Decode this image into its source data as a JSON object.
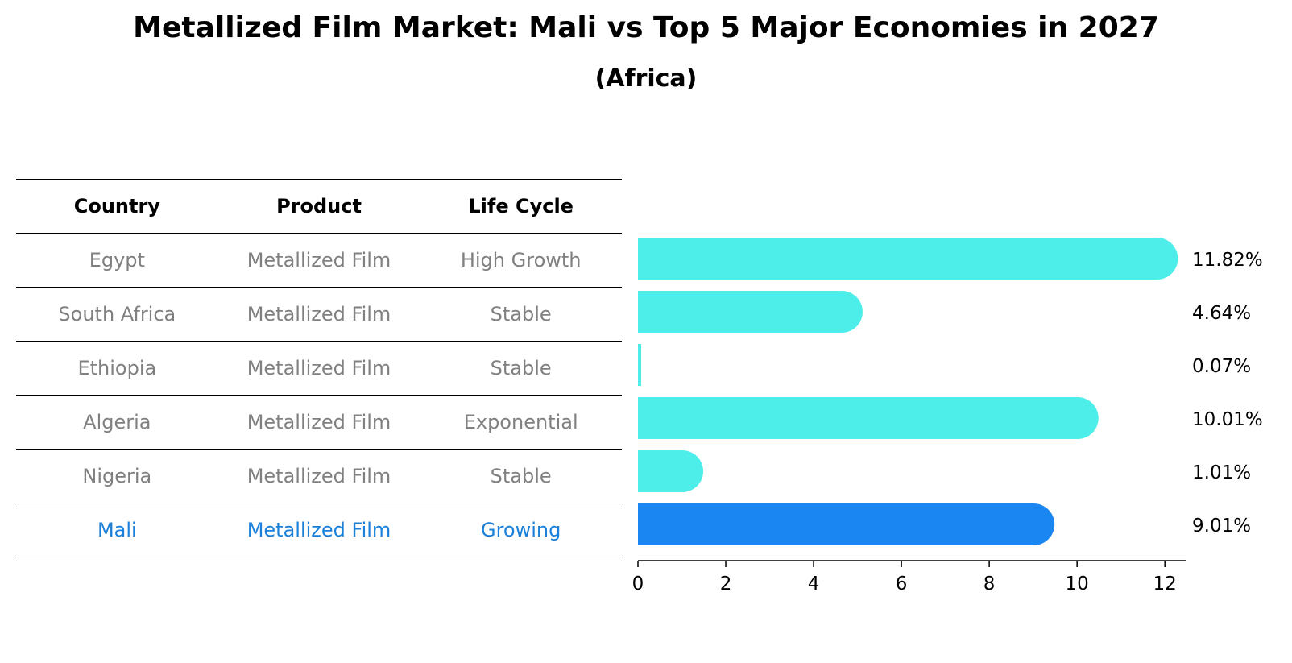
{
  "title": "Metallized Film Market: Mali vs Top 5 Major Economies in 2027",
  "subtitle": "(Africa)",
  "table": {
    "headers": [
      "Country",
      "Product",
      "Life Cycle"
    ],
    "rows": [
      {
        "country": "Egypt",
        "product": "Metallized Film",
        "life_cycle": "High Growth"
      },
      {
        "country": "South Africa",
        "product": "Metallized Film",
        "life_cycle": "Stable"
      },
      {
        "country": "Ethiopia",
        "product": "Metallized Film",
        "life_cycle": "Stable"
      },
      {
        "country": "Algeria",
        "product": "Metallized Film",
        "life_cycle": "Exponential"
      },
      {
        "country": "Nigeria",
        "product": "Metallized Film",
        "life_cycle": "Stable"
      },
      {
        "country": "Mali",
        "product": "Metallized Film",
        "life_cycle": "Growing"
      }
    ]
  },
  "chart_data": {
    "type": "bar",
    "orientation": "horizontal",
    "categories": [
      "Egypt",
      "South Africa",
      "Ethiopia",
      "Algeria",
      "Nigeria",
      "Mali"
    ],
    "values": [
      11.82,
      4.64,
      0.07,
      10.01,
      1.01,
      9.01
    ],
    "value_labels": [
      "11.82%",
      "4.64%",
      "0.07%",
      "10.01%",
      "1.01%",
      "9.01%"
    ],
    "xlim": [
      0,
      12.4
    ],
    "xticks": [
      0,
      2,
      4,
      6,
      8,
      10,
      12
    ],
    "xlabel": "",
    "ylabel": "",
    "grid": false,
    "highlight_category": "Mali",
    "colors": {
      "default": "#4deee9",
      "highlight": "#1a86f2",
      "highlight_text": "#1a80d9",
      "muted_text": "#808080"
    }
  }
}
